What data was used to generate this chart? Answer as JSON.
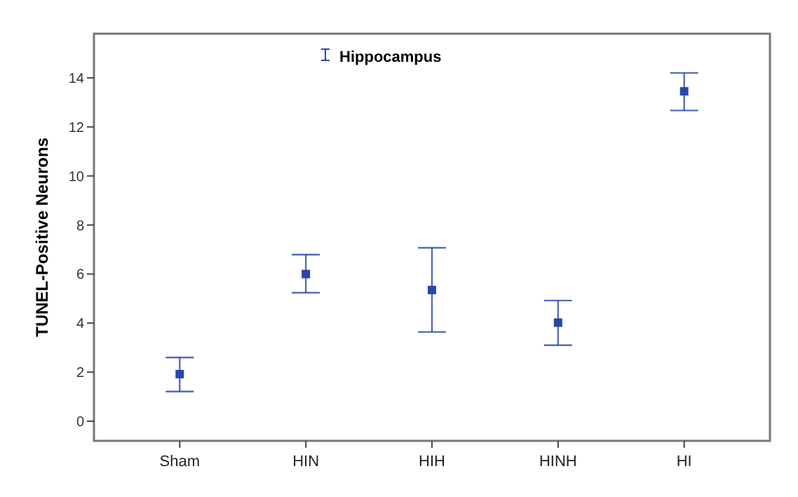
{
  "chart_data": {
    "type": "scatter",
    "ylabel": "TUNEL-Positive Neurons",
    "categories": [
      "Sham",
      "HIN",
      "HIH",
      "HINH",
      "HI"
    ],
    "series": [
      {
        "name": "Hippocampus",
        "color": "#2a47a8",
        "values": [
          1.92,
          6.0,
          5.35,
          4.02,
          13.45
        ],
        "errors": [
          [
            1.21,
            2.6
          ],
          [
            5.24,
            6.79
          ],
          [
            3.64,
            7.07
          ],
          [
            3.1,
            4.92
          ],
          [
            12.67,
            14.2
          ]
        ]
      }
    ],
    "ylim": [
      -0.8,
      15.8
    ],
    "yticks": [
      0,
      2,
      4,
      6,
      8,
      10,
      12,
      14
    ],
    "grid": false,
    "legend": "top",
    "marker": "square"
  }
}
